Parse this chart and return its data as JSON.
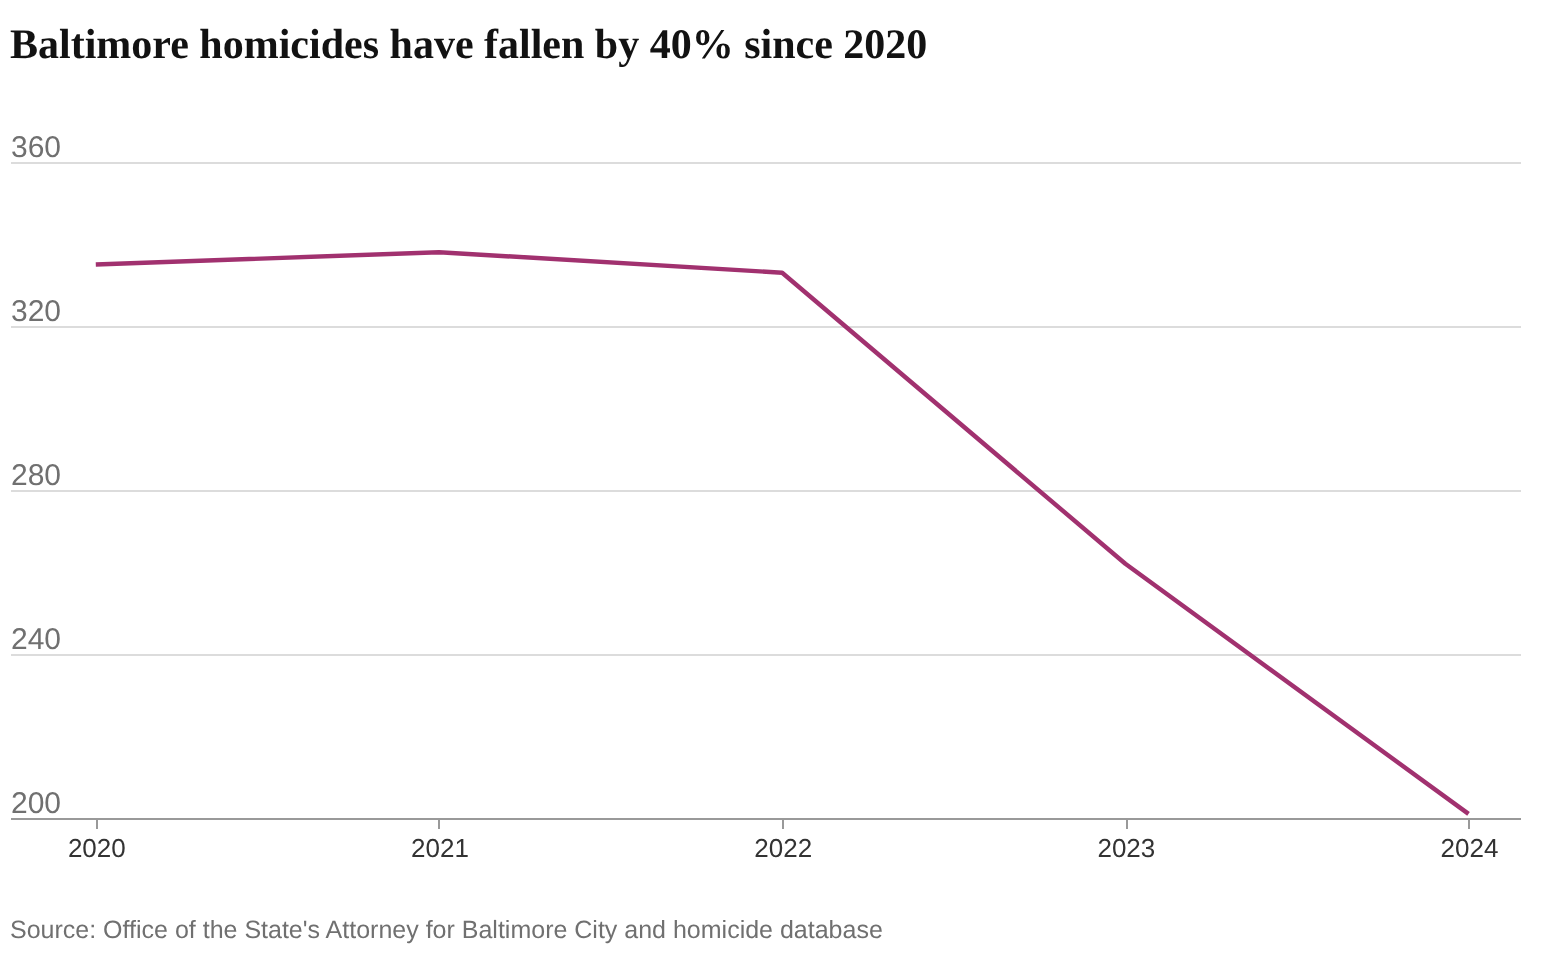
{
  "chart_data": {
    "type": "line",
    "title": "Baltimore homicides have fallen by 40% since 2020",
    "x": [
      2020,
      2021,
      2022,
      2023,
      2024
    ],
    "series": [
      {
        "color": "#a1316f",
        "values": [
          335,
          338,
          333,
          262,
          201
        ]
      }
    ],
    "xlim": [
      2019.75,
      2024.15
    ],
    "xticks": [
      2020,
      2021,
      2022,
      2023,
      2024
    ],
    "ylim": [
      200,
      360
    ],
    "yticks": [
      200,
      240,
      280,
      320,
      360
    ],
    "grid": "y",
    "marker": "none",
    "line_style": "solid",
    "annotations": [
      "Source: Office of the State's Attorney for Baltimore City and homicide database"
    ]
  }
}
